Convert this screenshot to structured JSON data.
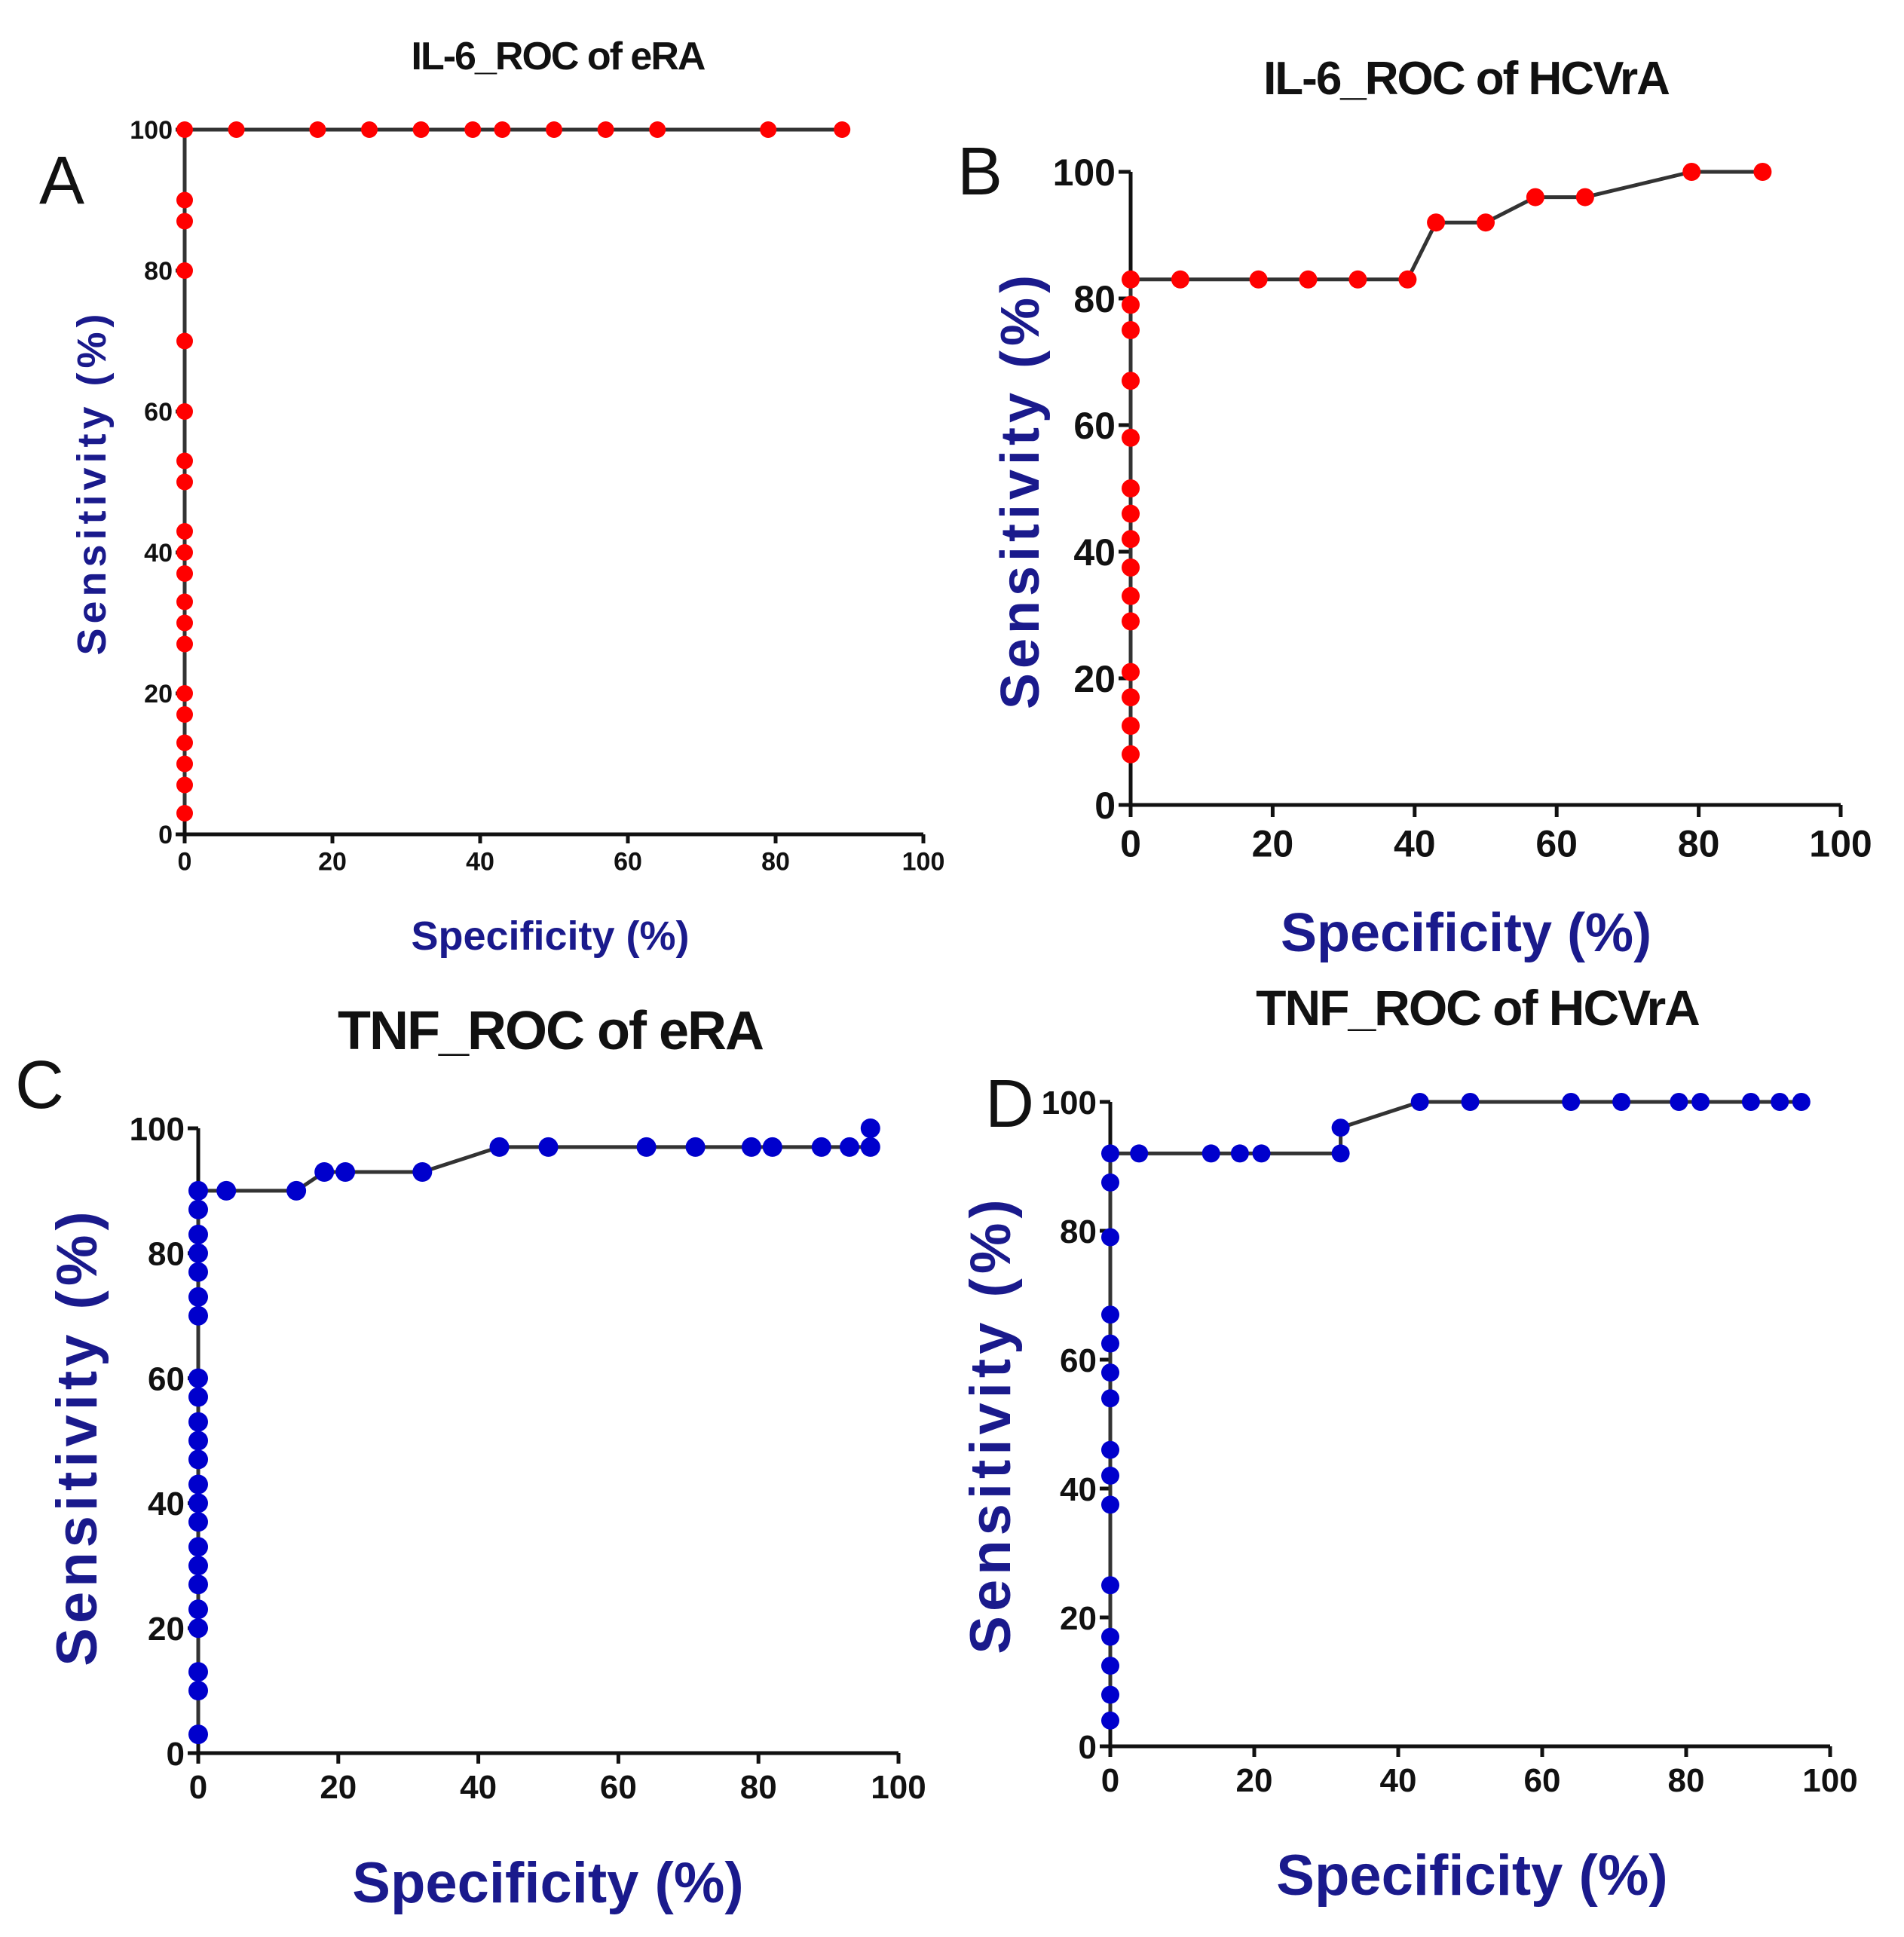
{
  "chart_data": [
    {
      "panel": "A",
      "type": "line",
      "title": "IL-6_ROC of eRA",
      "xlabel": "Specificity (%)",
      "ylabel": "Sensitivity (%)",
      "xlim": [
        0,
        100
      ],
      "ylim": [
        0,
        100
      ],
      "xticks": [
        0,
        20,
        40,
        60,
        80,
        100
      ],
      "yticks": [
        0,
        20,
        40,
        60,
        80,
        100
      ],
      "grid": false,
      "marker_color": "#ff0000",
      "label_color": "#1a1a8c",
      "line_color": "#333333",
      "points": [
        [
          0,
          3
        ],
        [
          0,
          7
        ],
        [
          0,
          10
        ],
        [
          0,
          13
        ],
        [
          0,
          17
        ],
        [
          0,
          20
        ],
        [
          0,
          27
        ],
        [
          0,
          30
        ],
        [
          0,
          33
        ],
        [
          0,
          37
        ],
        [
          0,
          40
        ],
        [
          0,
          43
        ],
        [
          0,
          50
        ],
        [
          0,
          53
        ],
        [
          0,
          60
        ],
        [
          0,
          70
        ],
        [
          0,
          80
        ],
        [
          0,
          87
        ],
        [
          0,
          90
        ],
        [
          0,
          100
        ],
        [
          7,
          100
        ],
        [
          18,
          100
        ],
        [
          25,
          100
        ],
        [
          32,
          100
        ],
        [
          39,
          100
        ],
        [
          43,
          100
        ],
        [
          50,
          100
        ],
        [
          57,
          100
        ],
        [
          64,
          100
        ],
        [
          79,
          100
        ],
        [
          89,
          100
        ]
      ]
    },
    {
      "panel": "B",
      "type": "line",
      "title": "IL-6_ROC of HCVrA",
      "xlabel": "Specificity (%)",
      "ylabel": "Sensitivity (%)",
      "xlim": [
        0,
        100
      ],
      "ylim": [
        0,
        100
      ],
      "xticks": [
        0,
        20,
        40,
        60,
        80,
        100
      ],
      "yticks": [
        0,
        20,
        40,
        60,
        80,
        100
      ],
      "grid": false,
      "marker_color": "#ff0000",
      "label_color": "#1a1a8c",
      "line_color": "#333333",
      "points": [
        [
          0,
          8
        ],
        [
          0,
          12.5
        ],
        [
          0,
          17
        ],
        [
          0,
          21
        ],
        [
          0,
          29
        ],
        [
          0,
          33
        ],
        [
          0,
          37.5
        ],
        [
          0,
          42
        ],
        [
          0,
          46
        ],
        [
          0,
          50
        ],
        [
          0,
          58
        ],
        [
          0,
          67
        ],
        [
          0,
          75
        ],
        [
          0,
          79
        ],
        [
          0,
          83
        ],
        [
          7,
          83
        ],
        [
          18,
          83
        ],
        [
          25,
          83
        ],
        [
          32,
          83
        ],
        [
          39,
          83
        ],
        [
          43,
          92
        ],
        [
          50,
          92
        ],
        [
          57,
          96
        ],
        [
          64,
          96
        ],
        [
          79,
          100
        ],
        [
          89,
          100
        ]
      ]
    },
    {
      "panel": "C",
      "type": "line",
      "title": "TNF_ROC of eRA",
      "xlabel": "Specificity (%)",
      "ylabel": "Sensitivity (%)",
      "xlim": [
        0,
        100
      ],
      "ylim": [
        0,
        100
      ],
      "xticks": [
        0,
        20,
        40,
        60,
        80,
        100
      ],
      "yticks": [
        0,
        20,
        40,
        60,
        80,
        100
      ],
      "grid": false,
      "marker_color": "#0000cc",
      "label_color": "#1a1a8c",
      "line_color": "#333333",
      "points": [
        [
          0,
          3
        ],
        [
          0,
          10
        ],
        [
          0,
          13
        ],
        [
          0,
          20
        ],
        [
          0,
          23
        ],
        [
          0,
          27
        ],
        [
          0,
          30
        ],
        [
          0,
          33
        ],
        [
          0,
          37
        ],
        [
          0,
          40
        ],
        [
          0,
          43
        ],
        [
          0,
          47
        ],
        [
          0,
          50
        ],
        [
          0,
          53
        ],
        [
          0,
          57
        ],
        [
          0,
          60
        ],
        [
          0,
          70
        ],
        [
          0,
          73
        ],
        [
          0,
          77
        ],
        [
          0,
          80
        ],
        [
          0,
          83
        ],
        [
          0,
          87
        ],
        [
          0,
          90
        ],
        [
          4,
          90
        ],
        [
          14,
          90
        ],
        [
          18,
          93
        ],
        [
          21,
          93
        ],
        [
          32,
          93
        ],
        [
          43,
          97
        ],
        [
          50,
          97
        ],
        [
          64,
          97
        ],
        [
          71,
          97
        ],
        [
          79,
          97
        ],
        [
          82,
          97
        ],
        [
          89,
          97
        ],
        [
          93,
          97
        ],
        [
          96,
          97
        ],
        [
          96,
          100
        ]
      ]
    },
    {
      "panel": "D",
      "type": "line",
      "title": "TNF_ROC of HCVrA",
      "xlabel": "Specificity (%)",
      "ylabel": "Sensitivity (%)",
      "xlim": [
        0,
        100
      ],
      "ylim": [
        0,
        100
      ],
      "xticks": [
        0,
        20,
        40,
        60,
        80,
        100
      ],
      "yticks": [
        0,
        20,
        40,
        60,
        80,
        100
      ],
      "grid": false,
      "marker_color": "#0000cc",
      "label_color": "#1a1a8c",
      "line_color": "#333333",
      "points": [
        [
          0,
          4
        ],
        [
          0,
          8
        ],
        [
          0,
          12.5
        ],
        [
          0,
          17
        ],
        [
          0,
          25
        ],
        [
          0,
          37.5
        ],
        [
          0,
          42
        ],
        [
          0,
          46
        ],
        [
          0,
          54
        ],
        [
          0,
          58
        ],
        [
          0,
          62.5
        ],
        [
          0,
          67
        ],
        [
          0,
          79
        ],
        [
          0,
          87.5
        ],
        [
          0,
          92
        ],
        [
          4,
          92
        ],
        [
          14,
          92
        ],
        [
          18,
          92
        ],
        [
          21,
          92
        ],
        [
          32,
          92
        ],
        [
          32,
          96
        ],
        [
          43,
          100
        ],
        [
          50,
          100
        ],
        [
          64,
          100
        ],
        [
          71,
          100
        ],
        [
          79,
          100
        ],
        [
          82,
          100
        ],
        [
          89,
          100
        ],
        [
          93,
          100
        ],
        [
          96,
          100
        ]
      ]
    }
  ]
}
